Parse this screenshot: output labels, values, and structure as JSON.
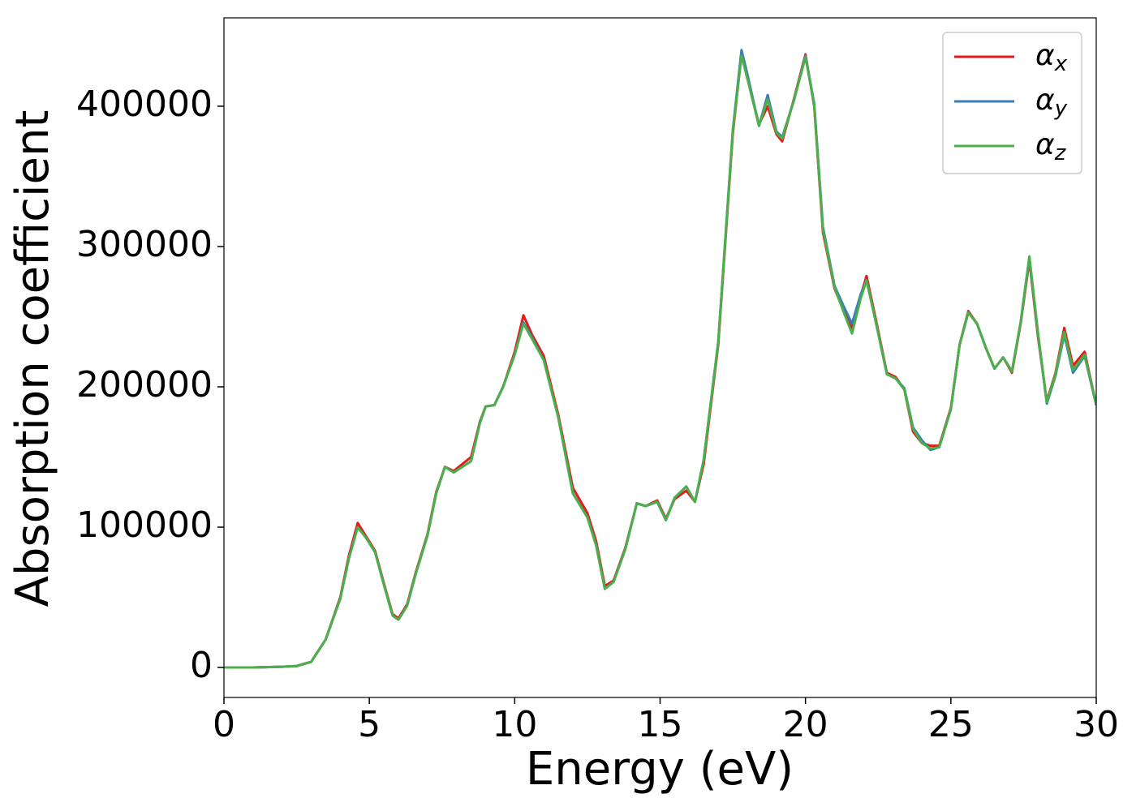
{
  "chart_data": {
    "type": "line",
    "xlabel": "Energy (eV)",
    "ylabel": "Absorption coefficient",
    "x": [
      0,
      1,
      2,
      2.5,
      3,
      3.5,
      4,
      4.3,
      4.6,
      4.9,
      5.2,
      5.5,
      5.8,
      6,
      6.3,
      6.6,
      7,
      7.3,
      7.6,
      7.9,
      8.2,
      8.5,
      8.8,
      9,
      9.3,
      9.6,
      10,
      10.3,
      10.6,
      11,
      11.5,
      12,
      12.5,
      12.8,
      13.1,
      13.4,
      13.8,
      14.2,
      14.5,
      14.9,
      15.2,
      15.5,
      15.9,
      16.2,
      16.5,
      17,
      17.5,
      17.8,
      18,
      18.4,
      18.7,
      19,
      19.2,
      19.6,
      20,
      20.3,
      20.6,
      21,
      21.3,
      21.6,
      21.9,
      22.1,
      22.4,
      22.8,
      23.1,
      23.4,
      23.7,
      24,
      24.3,
      24.6,
      25,
      25.3,
      25.6,
      25.9,
      26.2,
      26.5,
      26.8,
      27.1,
      27.4,
      27.7,
      28,
      28.3,
      28.6,
      28.9,
      29.2,
      29.6,
      30
    ],
    "series": [
      {
        "name": "αx",
        "color": "#e41a1c",
        "values": [
          0,
          0,
          500,
          1000,
          4000,
          20000,
          50000,
          80000,
          103000,
          93000,
          83000,
          60000,
          38000,
          35000,
          45000,
          68000,
          95000,
          125000,
          143000,
          140000,
          145000,
          150000,
          175000,
          186000,
          187000,
          200000,
          225000,
          251000,
          237000,
          222000,
          180000,
          128000,
          110000,
          90000,
          58000,
          62000,
          85000,
          117000,
          115000,
          119000,
          106000,
          120000,
          126000,
          118000,
          145000,
          230000,
          380000,
          438000,
          420000,
          387000,
          400000,
          380000,
          375000,
          405000,
          437000,
          400000,
          310000,
          270000,
          255000,
          242000,
          265000,
          279000,
          250000,
          210000,
          207000,
          198000,
          168000,
          160000,
          158000,
          158000,
          185000,
          230000,
          254000,
          245000,
          228000,
          213000,
          221000,
          210000,
          245000,
          290000,
          235000,
          190000,
          210000,
          242000,
          215000,
          225000,
          187000
        ]
      },
      {
        "name": "αy",
        "color": "#377eb8",
        "values": [
          0,
          0,
          500,
          1000,
          4000,
          20000,
          49000,
          78000,
          100000,
          92000,
          82000,
          59000,
          37000,
          34000,
          44000,
          67000,
          94000,
          124000,
          143000,
          139000,
          143000,
          147000,
          174000,
          186000,
          187000,
          200000,
          223000,
          246000,
          235000,
          219000,
          178000,
          124000,
          107000,
          87000,
          56000,
          61000,
          84000,
          117000,
          115000,
          118000,
          105000,
          121000,
          129000,
          118000,
          148000,
          232000,
          383000,
          440000,
          423000,
          386000,
          408000,
          382000,
          378000,
          404000,
          436000,
          402000,
          314000,
          272000,
          258000,
          245000,
          266000,
          276000,
          248000,
          209000,
          206000,
          199000,
          171000,
          162000,
          155000,
          157000,
          184000,
          230000,
          253000,
          245000,
          228000,
          213000,
          221000,
          211000,
          246000,
          292000,
          237000,
          188000,
          208000,
          237000,
          210000,
          222000,
          187000
        ]
      },
      {
        "name": "αz",
        "color": "#4daf4a",
        "values": [
          0,
          0,
          500,
          1000,
          4000,
          20000,
          49000,
          78000,
          100000,
          92000,
          82000,
          59000,
          37000,
          34000,
          44000,
          67000,
          94000,
          124000,
          143000,
          139000,
          143000,
          147000,
          174000,
          186000,
          187000,
          200000,
          223000,
          245000,
          234000,
          219000,
          178000,
          124000,
          107000,
          87000,
          56000,
          61000,
          84000,
          117000,
          115000,
          118000,
          105000,
          121000,
          129000,
          118000,
          148000,
          232000,
          382000,
          436000,
          420000,
          386000,
          405000,
          381000,
          377000,
          404000,
          435000,
          401000,
          312000,
          271000,
          254000,
          238000,
          263000,
          276000,
          248000,
          209000,
          206000,
          198000,
          170000,
          160000,
          156000,
          157000,
          184000,
          230000,
          253000,
          245000,
          228000,
          213000,
          221000,
          211000,
          246000,
          293000,
          238000,
          189000,
          209000,
          239000,
          212000,
          223000,
          187000
        ]
      }
    ],
    "xlim": [
      0,
      30
    ],
    "ylim": [
      -21400,
      463000
    ],
    "xticks": [
      0,
      5,
      10,
      15,
      20,
      25,
      30
    ],
    "yticks": [
      0,
      100000,
      200000,
      300000,
      400000
    ],
    "legend": "upper right"
  }
}
